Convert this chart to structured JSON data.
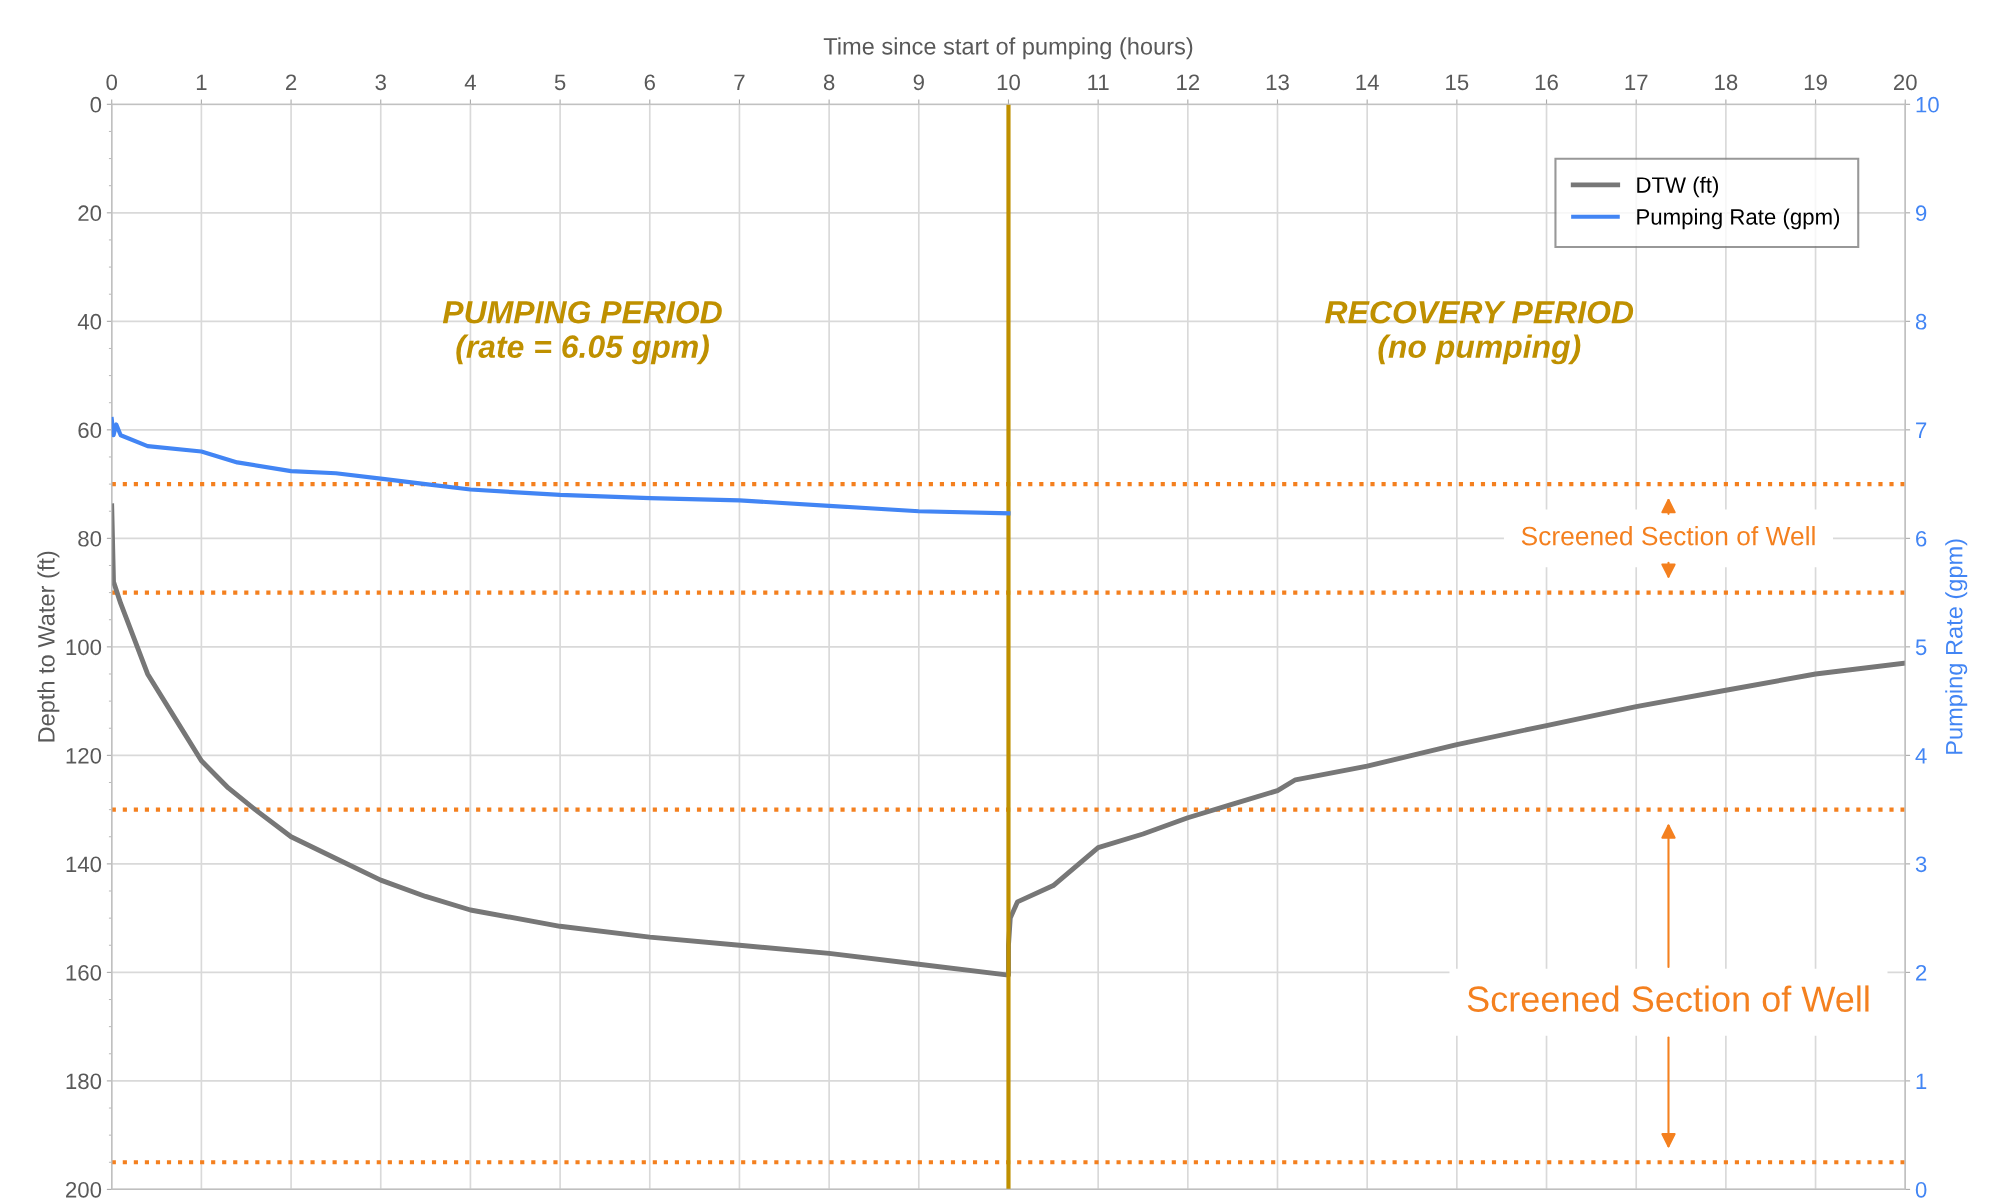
{
  "chart_data": {
    "type": "line",
    "xlabel": "Time since start of pumping (hours)",
    "ylabel": "Depth to Water (ft)",
    "y2label": "Pumping Rate (gpm)",
    "xlim": [
      0,
      20
    ],
    "xticks": [
      0,
      1,
      2,
      3,
      4,
      5,
      6,
      7,
      8,
      9,
      10,
      11,
      12,
      13,
      14,
      15,
      16,
      17,
      18,
      19,
      20
    ],
    "ylim": [
      200,
      0
    ],
    "yticks": [
      0,
      20,
      40,
      60,
      80,
      100,
      120,
      140,
      160,
      180,
      200
    ],
    "y2lim": [
      0,
      10
    ],
    "y2ticks": [
      0,
      1,
      2,
      3,
      4,
      5,
      6,
      7,
      8,
      9,
      10
    ],
    "grid": true,
    "legend": "top right",
    "series": [
      {
        "name": "DTW (ft)",
        "color": "#777777",
        "x": [
          0,
          0.02,
          0.1,
          0.4,
          0.7,
          1.0,
          1.3,
          1.6,
          2.0,
          2.5,
          3.0,
          3.5,
          4.0,
          5.0,
          6.0,
          7.0,
          8.0,
          9.0,
          10.0,
          10.0,
          10.02,
          10.1,
          10.5,
          11.0,
          11.5,
          12.0,
          12.5,
          13.0,
          13.2,
          14.0,
          14.5,
          15.0,
          16.0,
          17.0,
          18.0,
          19.0,
          20.0
        ],
        "values": [
          74,
          88,
          92,
          105,
          113,
          121,
          126,
          130,
          135,
          139,
          143,
          146,
          148.5,
          151.5,
          153.5,
          155,
          156.5,
          158.5,
          160.5,
          155,
          150,
          147,
          144,
          137,
          134.5,
          131.5,
          129,
          126.5,
          124.5,
          122,
          120,
          118,
          114.5,
          111,
          108,
          105,
          103
        ]
      },
      {
        "name": "Pumping Rate (gpm)",
        "color": "#4285f4",
        "axis": "y2",
        "x": [
          0,
          0.02,
          0.05,
          0.1,
          0.4,
          1.0,
          1.4,
          2.0,
          2.5,
          3.0,
          3.5,
          4.0,
          5.0,
          6.0,
          7.0,
          8.0,
          9.0,
          10.0
        ],
        "values": [
          7.1,
          6.95,
          7.05,
          6.95,
          6.85,
          6.8,
          6.7,
          6.62,
          6.6,
          6.55,
          6.5,
          6.45,
          6.4,
          6.37,
          6.35,
          6.3,
          6.25,
          6.23
        ]
      }
    ],
    "ref_lines": [
      {
        "axis": "x",
        "value": 10,
        "color": "#bf9000",
        "line_style": "solid"
      },
      {
        "axis": "y",
        "value": 70,
        "color": "#f4801f",
        "line_style": "dotted"
      },
      {
        "axis": "y",
        "value": 90,
        "color": "#f4801f",
        "line_style": "dotted"
      },
      {
        "axis": "y",
        "value": 130,
        "color": "#f4801f",
        "line_style": "dotted"
      },
      {
        "axis": "y",
        "value": 195,
        "color": "#f4801f",
        "line_style": "dotted"
      }
    ],
    "annotations": [
      "PUMPING PERIOD\n(rate = 6.05 gpm)",
      "RECOVERY PERIOD\n(no pumping)",
      "Screened Section of Well",
      "Screened Section of Well"
    ]
  }
}
